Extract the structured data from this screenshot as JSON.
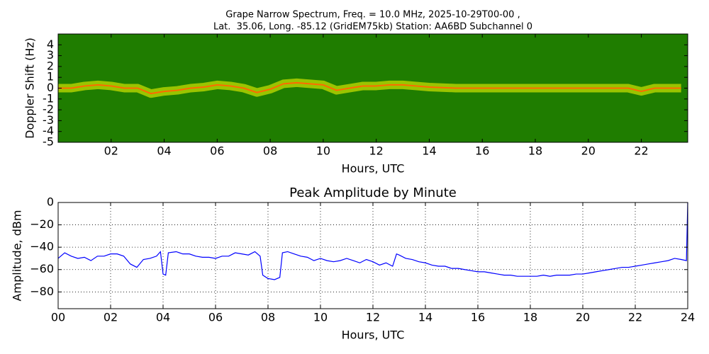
{
  "chart_data": [
    {
      "type": "heatmap",
      "title": [
        "Grape Narrow Spectrum, Freq. = 10.0 MHz, 2025-10-29T00-00 ,",
        "Lat.  35.06, Long. -85.12 (GridEM75kb) Station: AA6BD Subchannel 0"
      ],
      "x_label": "Hours, UTC",
      "y_label": "Doppler Shift (Hz)",
      "x": [
        0,
        0.5,
        1,
        1.5,
        2,
        2.5,
        3,
        3.5,
        4,
        4.5,
        5,
        5.5,
        6,
        6.5,
        7,
        7.5,
        8,
        8.5,
        9,
        9.5,
        10,
        10.5,
        11,
        11.5,
        12,
        12.5,
        13,
        13.5,
        14,
        15,
        16,
        17,
        18,
        19,
        20,
        21,
        21.5,
        22,
        22.5,
        23,
        23.5
      ],
      "values": [
        0,
        0,
        0.2,
        0.3,
        0.2,
        0,
        0,
        -0.5,
        -0.3,
        -0.2,
        0,
        0.1,
        0.3,
        0.2,
        0,
        -0.4,
        -0.1,
        0.4,
        0.5,
        0.4,
        0.3,
        -0.2,
        0,
        0.2,
        0.2,
        0.3,
        0.3,
        0.2,
        0.1,
        0,
        0,
        0,
        0,
        0,
        0,
        0,
        0,
        -0.3,
        0,
        0,
        0
      ],
      "background_color": "#1f7d00",
      "color": "#ffff00",
      "line_color": "#ff6a00",
      "xlim": [
        0,
        23.75
      ],
      "ylim": [
        -5,
        5
      ],
      "xticks": [
        {
          "value": 2,
          "label": "02"
        },
        {
          "value": 4,
          "label": "04"
        },
        {
          "value": 6,
          "label": "06"
        },
        {
          "value": 8,
          "label": "08"
        },
        {
          "value": 10,
          "label": "10"
        },
        {
          "value": 12,
          "label": "12"
        },
        {
          "value": 14,
          "label": "14"
        },
        {
          "value": 16,
          "label": "16"
        },
        {
          "value": 18,
          "label": "18"
        },
        {
          "value": 20,
          "label": "20"
        },
        {
          "value": 22,
          "label": "22"
        }
      ],
      "yticks": [
        -5,
        -4,
        -3,
        -2,
        -1,
        0,
        1,
        2,
        3,
        4
      ],
      "grid": false
    },
    {
      "type": "line",
      "title": "Peak Amplitude by Minute",
      "x_label": "Hours, UTC",
      "y_label": "Amplitude, dBm",
      "x": [
        0,
        0.25,
        0.5,
        0.75,
        1,
        1.25,
        1.5,
        1.75,
        2,
        2.25,
        2.5,
        2.75,
        3,
        3.25,
        3.5,
        3.75,
        3.9,
        4.0,
        4.1,
        4.2,
        4.5,
        4.75,
        5,
        5.25,
        5.5,
        5.75,
        6,
        6.25,
        6.5,
        6.75,
        7,
        7.25,
        7.5,
        7.7,
        7.8,
        8,
        8.25,
        8.45,
        8.55,
        8.75,
        9,
        9.25,
        9.5,
        9.75,
        10,
        10.25,
        10.5,
        10.75,
        11,
        11.25,
        11.5,
        11.75,
        12,
        12.25,
        12.5,
        12.75,
        12.9,
        13,
        13.25,
        13.5,
        13.75,
        14,
        14.25,
        14.5,
        14.75,
        15,
        15.25,
        15.5,
        15.75,
        16,
        16.25,
        16.5,
        16.75,
        17,
        17.25,
        17.5,
        17.75,
        18,
        18.25,
        18.5,
        18.75,
        19,
        19.25,
        19.5,
        19.75,
        20,
        20.25,
        20.5,
        20.75,
        21,
        21.25,
        21.5,
        21.75,
        22,
        22.25,
        22.5,
        22.75,
        23,
        23.25,
        23.5,
        23.75,
        23.95,
        24
      ],
      "values": [
        -50,
        -45,
        -48,
        -50,
        -49,
        -52,
        -48,
        -48,
        -46,
        -46,
        -48,
        -55,
        -58,
        -51,
        -50,
        -48,
        -44,
        -64,
        -65,
        -45,
        -44,
        -46,
        -46,
        -48,
        -49,
        -49,
        -50,
        -48,
        -48,
        -45,
        -46,
        -47,
        -44,
        -48,
        -65,
        -68,
        -69,
        -67,
        -45,
        -44,
        -46,
        -48,
        -49,
        -52,
        -50,
        -52,
        -53,
        -52,
        -50,
        -52,
        -54,
        -51,
        -53,
        -56,
        -54,
        -57,
        -46,
        -47,
        -50,
        -51,
        -53,
        -54,
        -56,
        -57,
        -57,
        -59,
        -59,
        -60,
        -61,
        -62,
        -62,
        -63,
        -64,
        -65,
        -65,
        -66,
        -66,
        -66,
        -66,
        -65,
        -66,
        -65,
        -65,
        -65,
        -64,
        -64,
        -63,
        -62,
        -61,
        -60,
        -59,
        -58,
        -58,
        -57,
        -56,
        -55,
        -54,
        -53,
        -52,
        -50,
        -51,
        -52,
        0
      ],
      "color": "#0000ff",
      "xlim": [
        0,
        24
      ],
      "ylim": [
        -95,
        0
      ],
      "xticks": [
        {
          "value": 0,
          "label": "00"
        },
        {
          "value": 2,
          "label": "02"
        },
        {
          "value": 4,
          "label": "04"
        },
        {
          "value": 6,
          "label": "06"
        },
        {
          "value": 8,
          "label": "08"
        },
        {
          "value": 10,
          "label": "10"
        },
        {
          "value": 12,
          "label": "12"
        },
        {
          "value": 14,
          "label": "14"
        },
        {
          "value": 16,
          "label": "16"
        },
        {
          "value": 18,
          "label": "18"
        },
        {
          "value": 20,
          "label": "20"
        },
        {
          "value": 22,
          "label": "22"
        },
        {
          "value": 24,
          "label": "24"
        }
      ],
      "yticks": [
        {
          "value": -80,
          "label": "−80"
        },
        {
          "value": -60,
          "label": "−60"
        },
        {
          "value": -40,
          "label": "−40"
        },
        {
          "value": -20,
          "label": "−20"
        },
        0
      ],
      "grid": true
    }
  ]
}
